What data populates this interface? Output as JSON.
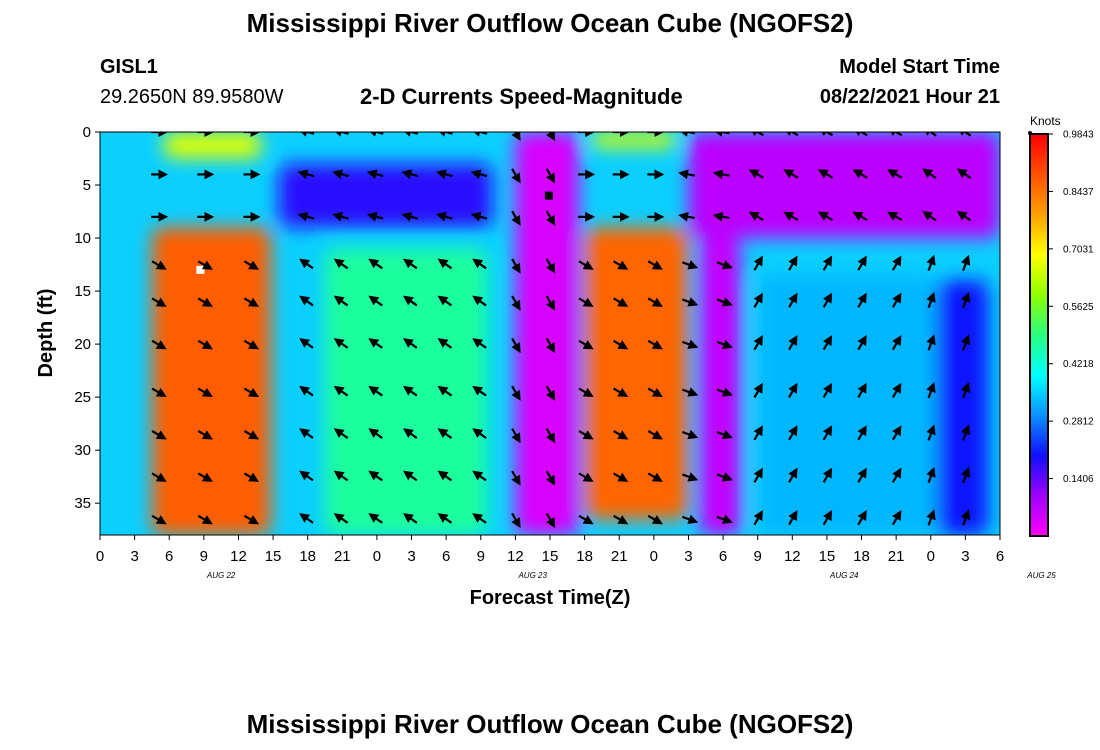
{
  "header": {
    "title": "Mississippi River Outflow Ocean Cube (NGOFS2)",
    "station": "GISL1",
    "coords": "29.2650N  89.9580W",
    "subtitle": "2-D Currents Speed-Magnitude",
    "model_label": "Model Start Time",
    "model_time": "08/22/2021 Hour 21"
  },
  "footer": {
    "title": "Mississippi River Outflow Ocean Cube (NGOFS2)"
  },
  "chart_data": {
    "type": "heatmap",
    "xlabel": "Forecast Time(Z)",
    "ylabel": "Depth (ft)",
    "colorbar_label": "Knots",
    "colorbar_ticks": [
      "0.9843",
      "0.8437",
      "0.7031",
      "0.5625",
      "0.4218",
      "0.2812",
      "0.1406"
    ],
    "x_tick_labels": [
      "0",
      "3",
      "6",
      "9",
      "12",
      "15",
      "18",
      "21",
      "0",
      "3",
      "6",
      "9",
      "12",
      "15",
      "18",
      "21",
      "0",
      "3",
      "6",
      "9",
      "12",
      "15",
      "18",
      "21",
      "0",
      "3",
      "6"
    ],
    "date_labels": [
      {
        "label": "AUG 22",
        "tick_index": 3.5
      },
      {
        "label": "AUG 23",
        "tick_index": 12.5
      },
      {
        "label": "AUG 24",
        "tick_index": 21.5
      },
      {
        "label": "AUG 25",
        "tick_index": 27.2
      }
    ],
    "xlim_hours": [
      0,
      78
    ],
    "y_ticks": [
      0,
      5,
      10,
      15,
      20,
      25,
      30,
      35
    ],
    "ylim_ft": [
      0,
      38
    ],
    "y_inverted": true,
    "speed_min_knots": 0.0,
    "speed_max_knots": 0.9843,
    "arrow_times_hours": [
      5,
      9,
      13,
      18,
      21,
      24,
      27,
      30,
      33,
      36,
      39,
      42,
      45,
      48,
      51,
      54,
      57,
      60,
      63,
      66,
      69,
      72,
      75
    ],
    "arrow_depths_ft": [
      0,
      4,
      8,
      12.5,
      16,
      20,
      24.5,
      28.5,
      32.5,
      36.5
    ],
    "speed_features": [
      {
        "name": "pulse_aug22",
        "t_start": 4.5,
        "t_end": 14.8,
        "depth_start": 9,
        "depth_end": 38,
        "speed": 0.87
      },
      {
        "name": "pulse_aug22_top",
        "t_start": 5.5,
        "t_end": 14,
        "depth_start": 0,
        "depth_end": 2.5,
        "speed": 0.66
      },
      {
        "name": "mid_aug22_23",
        "t_start": 19.5,
        "t_end": 33.5,
        "depth_start": 11,
        "depth_end": 38,
        "speed": 0.47
      },
      {
        "name": "surface_aug22_23",
        "t_start": 15.5,
        "t_end": 34,
        "depth_start": 3,
        "depth_end": 9,
        "speed": 0.18
      },
      {
        "name": "trough_aug23",
        "t_start": 36,
        "t_end": 41.5,
        "depth_start": 0,
        "depth_end": 38,
        "speed": 0.04
      },
      {
        "name": "pulse_aug23",
        "t_start": 42,
        "t_end": 51,
        "depth_start": 9,
        "depth_end": 36.5,
        "speed": 0.86
      },
      {
        "name": "pulse_aug23_top",
        "t_start": 42.5,
        "t_end": 50,
        "depth_start": 0,
        "depth_end": 1.5,
        "speed": 0.65
      },
      {
        "name": "surface_aug24",
        "t_start": 51,
        "t_end": 78,
        "depth_start": 0,
        "depth_end": 10,
        "speed": 0.07
      },
      {
        "name": "trough_aug24",
        "t_start": 52,
        "t_end": 55.5,
        "depth_start": 10,
        "depth_end": 38,
        "speed": 0.06
      },
      {
        "name": "mid_aug24",
        "t_start": 57,
        "t_end": 72.5,
        "depth_start": 13.5,
        "depth_end": 38,
        "speed": 0.33
      },
      {
        "name": "bottom_aug25",
        "t_start": 72.5,
        "t_end": 77,
        "depth_start": 14,
        "depth_end": 38,
        "speed": 0.2
      }
    ],
    "speed_markers": [
      {
        "kind": "max",
        "t_hours": 8.7,
        "depth_ft": 13,
        "color": "#ffffff"
      },
      {
        "kind": "min",
        "t_hours": 38.9,
        "depth_ft": 6,
        "color": "#000000"
      }
    ],
    "colormap": [
      "#ff00ff",
      "#a000ff",
      "#1010ff",
      "#0a90ff",
      "#00ffff",
      "#28ff80",
      "#90ff00",
      "#ffff00",
      "#ffa000",
      "#ff5000",
      "#ff0000"
    ]
  }
}
